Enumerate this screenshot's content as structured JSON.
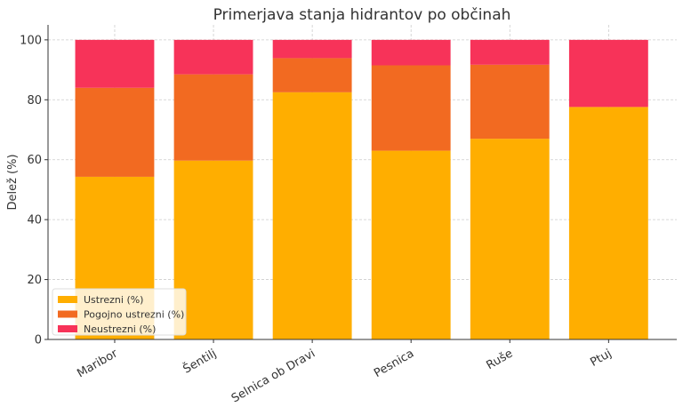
{
  "chart_data": {
    "type": "bar",
    "stacked": true,
    "title": "Primerjava stanja hidrantov po občinah",
    "xlabel": "",
    "ylabel": "Delež (%)",
    "ylim": [
      0,
      105
    ],
    "yticks": [
      0,
      20,
      40,
      60,
      80,
      100
    ],
    "grid": true,
    "legend_position": "bottom-left",
    "categories": [
      "Maribor",
      "Šentilj",
      "Selnica ob Dravi",
      "Pesnica",
      "Ruše",
      "Ptuj"
    ],
    "series": [
      {
        "name": "Ustrezni (%)",
        "color": "#FFAE00",
        "values": [
          54.3,
          59.7,
          82.5,
          63.0,
          67.0,
          77.6
        ]
      },
      {
        "name": "Pogojno ustrezni (%)",
        "color": "#F26A21",
        "values": [
          29.7,
          28.8,
          11.4,
          28.5,
          24.7,
          0
        ]
      },
      {
        "name": "Neustrezni (%)",
        "color": "#F73359",
        "values": [
          16.0,
          11.5,
          6.1,
          8.5,
          8.3,
          22.4
        ]
      }
    ]
  }
}
